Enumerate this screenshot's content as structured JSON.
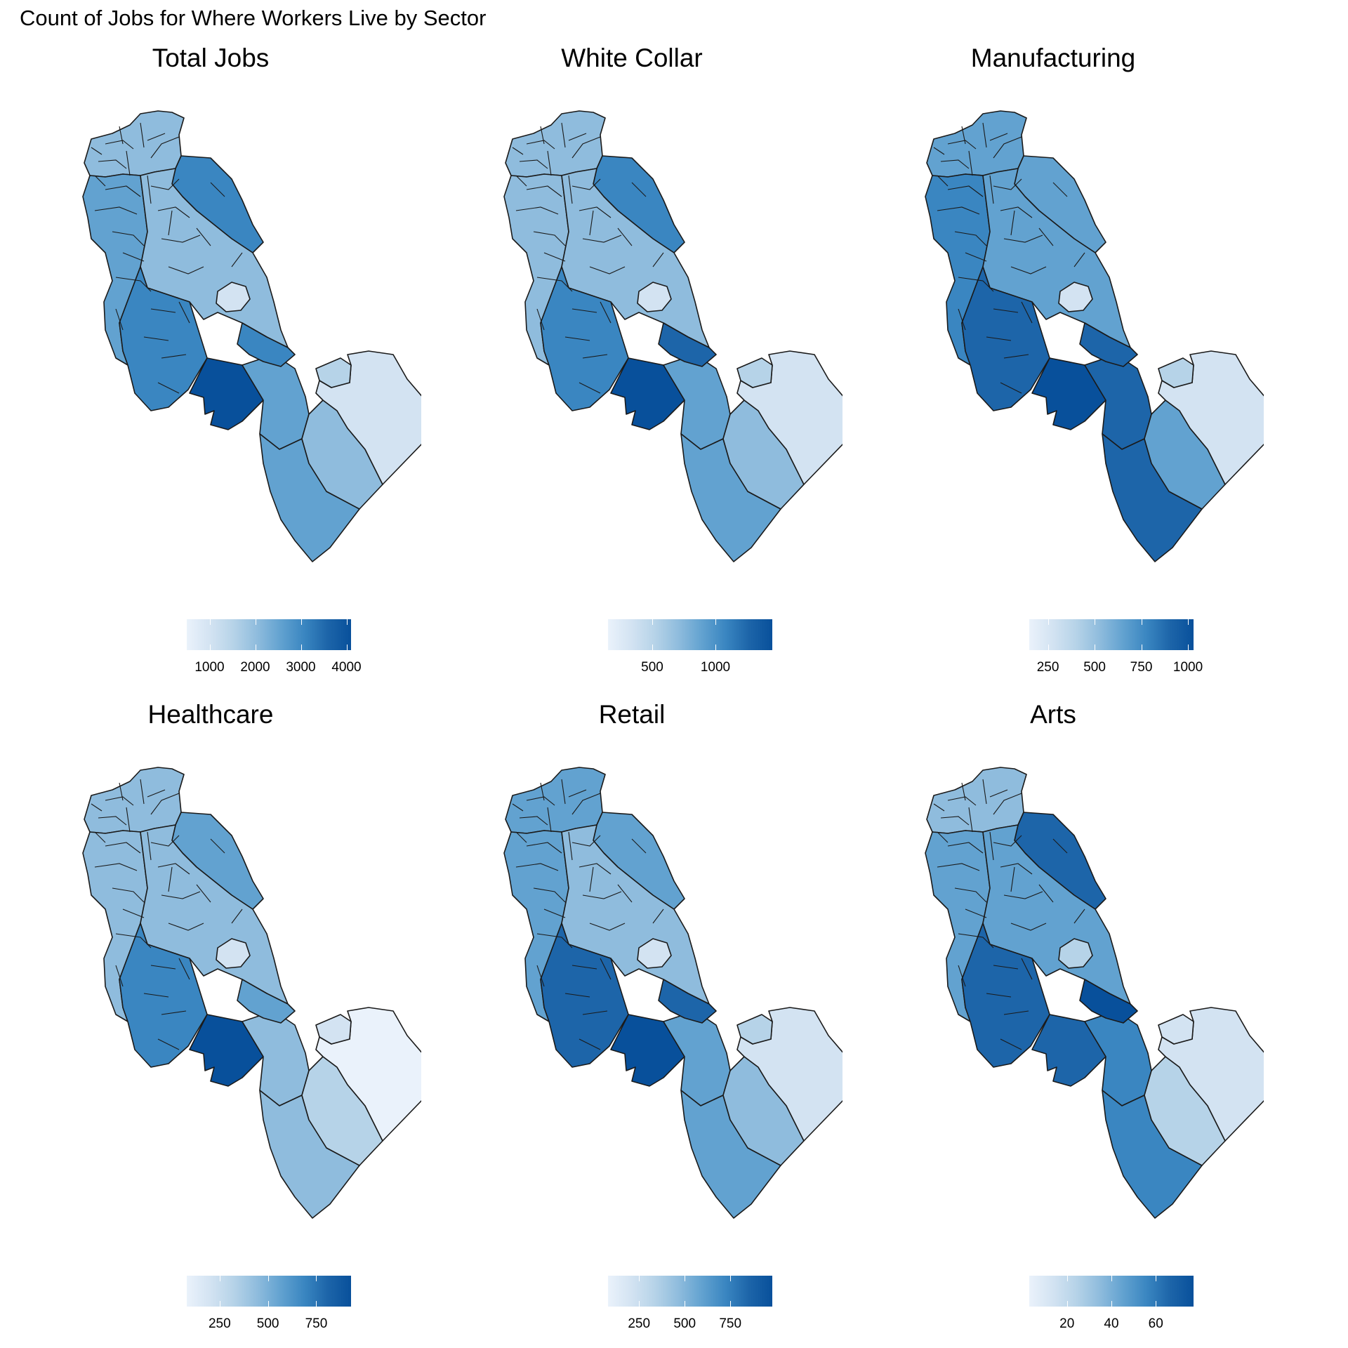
{
  "title": "Count of Jobs for Where Workers Live by Sector",
  "colors": {
    "scale": [
      "#eaf2fb",
      "#d3e3f2",
      "#b6d3e8",
      "#8fbcdd",
      "#62a2d0",
      "#3a86c1",
      "#1d65a9",
      "#08509b"
    ],
    "outline": "#1a1a1a"
  },
  "legend_type": "continuous colorbar",
  "panels": [
    {
      "title": "Total Jobs",
      "legend": {
        "min": 500,
        "max": 4100,
        "ticks": [
          1000,
          2000,
          3000,
          4000
        ],
        "labels": [
          "1000",
          "2000",
          "3000",
          "4000"
        ]
      },
      "levels": {
        "north": 3,
        "northeast": 5,
        "west": 4,
        "center": 3,
        "lake": 1,
        "south_notch": 7,
        "southwest": 5,
        "south_strip": 4,
        "south_tip": 4,
        "east_strip": 3,
        "east_big": 1,
        "east_small": 2,
        "east_mid": 5
      }
    },
    {
      "title": "White Collar",
      "legend": {
        "min": 150,
        "max": 1450,
        "ticks": [
          500,
          1000
        ],
        "labels": [
          "500",
          "1000"
        ]
      },
      "levels": {
        "north": 3,
        "northeast": 5,
        "west": 3,
        "center": 3,
        "lake": 1,
        "south_notch": 7,
        "southwest": 5,
        "south_strip": 4,
        "south_tip": 4,
        "east_strip": 3,
        "east_big": 1,
        "east_small": 2,
        "east_mid": 6
      }
    },
    {
      "title": "Manufacturing",
      "legend": {
        "min": 150,
        "max": 1030,
        "ticks": [
          250,
          500,
          750,
          1000
        ],
        "labels": [
          "250",
          "500",
          "750",
          "1000"
        ]
      },
      "levels": {
        "north": 4,
        "northeast": 4,
        "west": 5,
        "center": 4,
        "lake": 1,
        "south_notch": 7,
        "southwest": 6,
        "south_strip": 6,
        "south_tip": 6,
        "east_strip": 4,
        "east_big": 1,
        "east_small": 2,
        "east_mid": 6
      }
    },
    {
      "title": "Healthcare",
      "legend": {
        "min": 80,
        "max": 930,
        "ticks": [
          250,
          500,
          750
        ],
        "labels": [
          "250",
          "500",
          "750"
        ]
      },
      "levels": {
        "north": 3,
        "northeast": 4,
        "west": 3,
        "center": 3,
        "lake": 1,
        "south_notch": 7,
        "southwest": 5,
        "south_strip": 3,
        "south_tip": 3,
        "east_strip": 2,
        "east_big": 0,
        "east_small": 1,
        "east_mid": 4
      }
    },
    {
      "title": "Retail",
      "legend": {
        "min": 80,
        "max": 980,
        "ticks": [
          250,
          500,
          750
        ],
        "labels": [
          "250",
          "500",
          "750"
        ]
      },
      "levels": {
        "north": 4,
        "northeast": 4,
        "west": 4,
        "center": 3,
        "lake": 1,
        "south_notch": 7,
        "southwest": 6,
        "south_strip": 4,
        "south_tip": 4,
        "east_strip": 3,
        "east_big": 1,
        "east_small": 2,
        "east_mid": 6
      }
    },
    {
      "title": "Arts",
      "legend": {
        "min": 3,
        "max": 77,
        "ticks": [
          20,
          40,
          60
        ],
        "labels": [
          "20",
          "40",
          "60"
        ]
      },
      "levels": {
        "north": 3,
        "northeast": 6,
        "west": 4,
        "center": 4,
        "lake": 2,
        "south_notch": 6,
        "southwest": 6,
        "south_strip": 5,
        "south_tip": 5,
        "east_strip": 2,
        "east_big": 1,
        "east_small": 1,
        "east_mid": 7
      }
    }
  ]
}
